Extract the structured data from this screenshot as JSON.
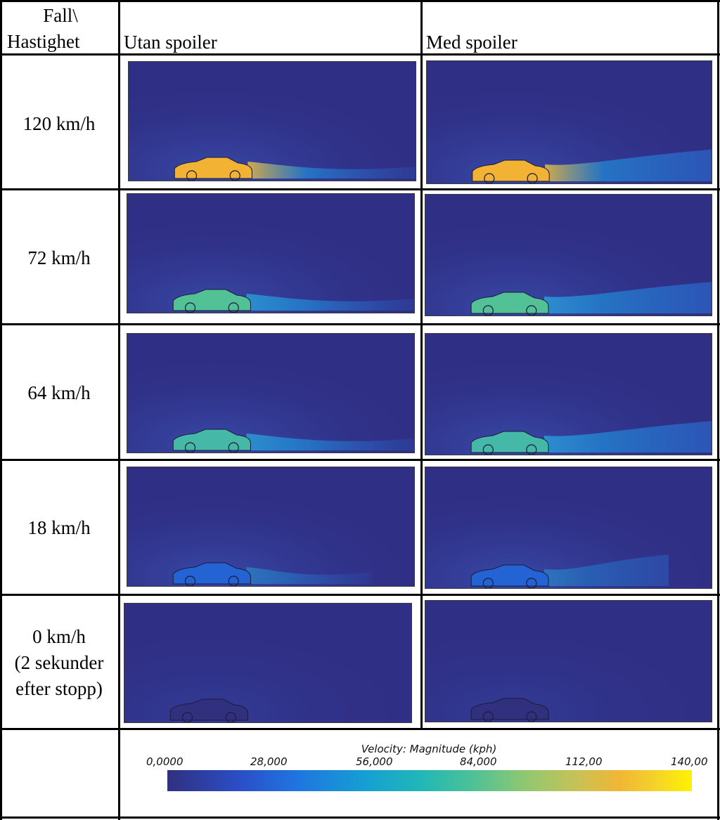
{
  "header": {
    "fall_line1": "Fall\\",
    "fall_line2": "Hastighet",
    "col_without": "Utan spoiler",
    "col_with": "Med spoiler"
  },
  "rows": [
    {
      "label": [
        "120 km/h"
      ],
      "speed_kph": 120
    },
    {
      "label": [
        "72 km/h"
      ],
      "speed_kph": 72
    },
    {
      "label": [
        "64 km/h"
      ],
      "speed_kph": 64
    },
    {
      "label": [
        "18 km/h"
      ],
      "speed_kph": 18
    },
    {
      "label": [
        "0 km/h",
        "(2 sekunder",
        "efter stopp)"
      ],
      "speed_kph": 0
    }
  ],
  "legend": {
    "title": "Velocity: Magnitude (kph)",
    "ticks": [
      "0,0000",
      "28,000",
      "56,000",
      "84,000",
      "112,00",
      "140,00"
    ],
    "min": 0,
    "max": 140
  },
  "colors": {
    "background_field": "#2f2f85",
    "car_120": "#f2b233",
    "car_72": "#52c196",
    "car_64": "#45b8a8",
    "car_18": "#2463d4",
    "car_0": "#30307f"
  }
}
